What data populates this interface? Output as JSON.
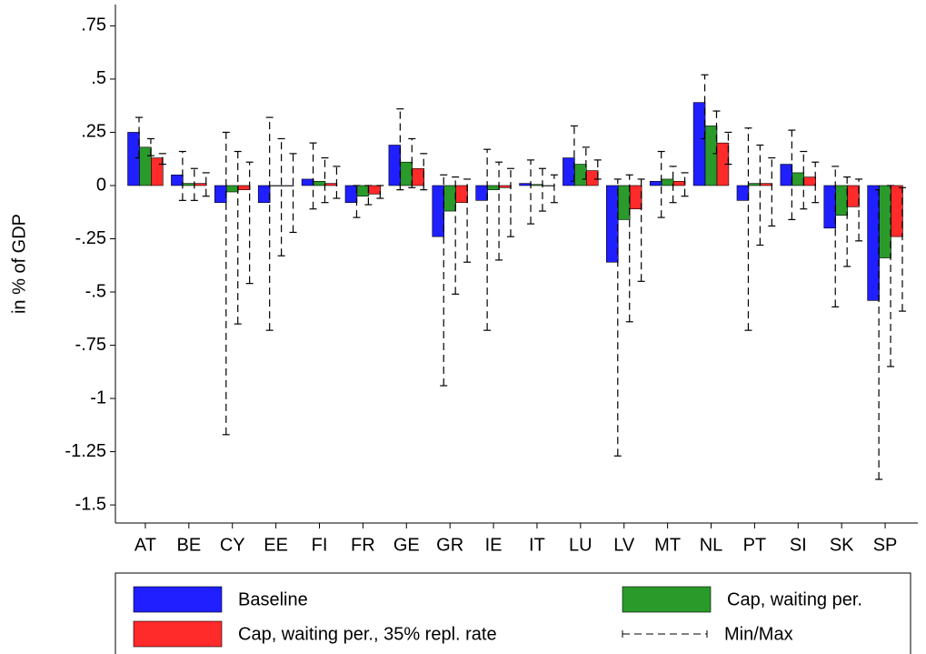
{
  "chart_data": {
    "type": "bar",
    "y_label": "in % of  GDP",
    "categories": [
      "AT",
      "BE",
      "CY",
      "EE",
      "FI",
      "FR",
      "GE",
      "GR",
      "IE",
      "IT",
      "LU",
      "LV",
      "MT",
      "NL",
      "PT",
      "SI",
      "SK",
      "SP"
    ],
    "series": [
      {
        "name": "Baseline",
        "color": "#1f1fff",
        "values": [
          0.25,
          0.05,
          -0.08,
          -0.08,
          0.03,
          -0.08,
          0.19,
          -0.24,
          -0.07,
          0.01,
          0.13,
          -0.36,
          0.02,
          0.39,
          -0.07,
          0.1,
          -0.2,
          -0.54
        ],
        "mins": [
          0.13,
          -0.07,
          -1.17,
          -0.68,
          -0.11,
          -0.15,
          -0.02,
          -0.94,
          -0.68,
          -0.18,
          0.02,
          -1.27,
          -0.15,
          0.22,
          -0.68,
          -0.16,
          -0.57,
          -1.38
        ],
        "maxs": [
          0.32,
          0.16,
          0.25,
          0.32,
          0.2,
          0.0,
          0.36,
          0.05,
          0.17,
          0.12,
          0.28,
          0.03,
          0.16,
          0.52,
          0.27,
          0.26,
          0.09,
          -0.02
        ]
      },
      {
        "name": "Cap, waiting per.",
        "color": "#2a9a2a",
        "values": [
          0.18,
          0.01,
          -0.03,
          0.0,
          0.02,
          -0.05,
          0.11,
          -0.12,
          -0.02,
          0.005,
          0.1,
          -0.16,
          0.03,
          0.28,
          0.01,
          0.06,
          -0.14,
          -0.34
        ],
        "mins": [
          0.14,
          -0.07,
          -0.65,
          -0.33,
          -0.08,
          -0.09,
          -0.01,
          -0.51,
          -0.35,
          -0.12,
          0.03,
          -0.64,
          -0.08,
          0.15,
          -0.28,
          -0.11,
          -0.38,
          -0.85
        ],
        "maxs": [
          0.22,
          0.08,
          0.16,
          0.22,
          0.13,
          0.0,
          0.22,
          0.04,
          0.11,
          0.08,
          0.18,
          0.05,
          0.09,
          0.35,
          0.19,
          0.16,
          0.04,
          0.0
        ]
      },
      {
        "name": "Cap, waiting per., 35% repl. rate",
        "color": "#ff2a2a",
        "values": [
          0.13,
          0.01,
          -0.02,
          0.0,
          0.01,
          -0.04,
          0.08,
          -0.08,
          -0.01,
          0.0,
          0.07,
          -0.11,
          0.02,
          0.2,
          0.01,
          0.04,
          -0.1,
          -0.24
        ],
        "mins": [
          0.1,
          -0.05,
          -0.46,
          -0.22,
          -0.06,
          -0.06,
          -0.02,
          -0.36,
          -0.24,
          -0.08,
          0.03,
          -0.45,
          -0.05,
          0.1,
          -0.19,
          -0.08,
          -0.26,
          -0.59
        ],
        "maxs": [
          0.15,
          0.06,
          0.11,
          0.15,
          0.09,
          0.0,
          0.15,
          0.03,
          0.08,
          0.05,
          0.12,
          0.03,
          0.06,
          0.25,
          0.13,
          0.11,
          0.03,
          -0.01
        ]
      }
    ],
    "error_label": "Min/Max",
    "ylim": [
      -1.585,
      0.85
    ],
    "yticks": [
      {
        "value": 0.75,
        "label": ".75"
      },
      {
        "value": 0.5,
        "label": ".5"
      },
      {
        "value": 0.25,
        "label": ".25"
      },
      0,
      {
        "value": -0.25,
        "label": "-.25"
      },
      {
        "value": -0.5,
        "label": "-.5"
      },
      {
        "value": -0.75,
        "label": "-.75"
      },
      -1,
      {
        "value": -1.25,
        "label": "-1.25"
      },
      {
        "value": -1.5,
        "label": "-1.5"
      }
    ],
    "grid": false
  }
}
